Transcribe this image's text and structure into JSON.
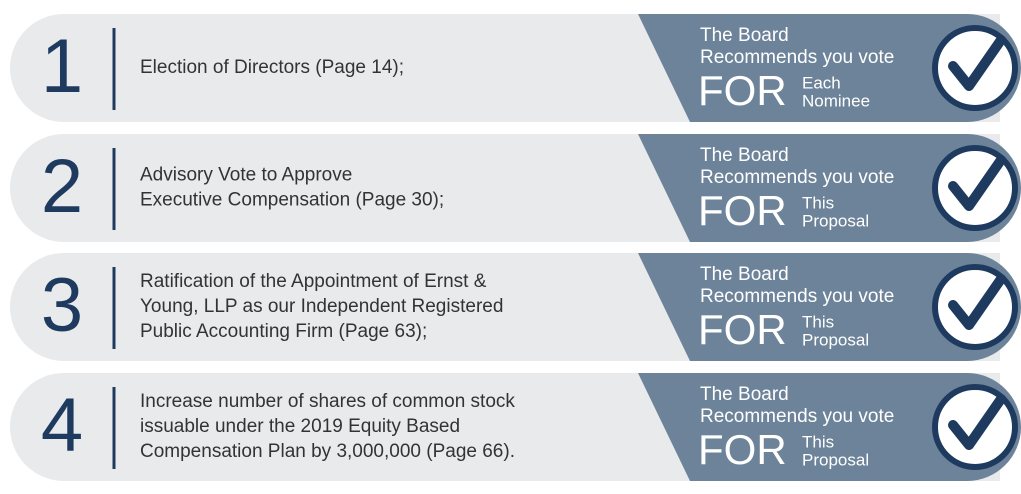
{
  "items": [
    {
      "number": "1",
      "description": [
        "Election of Directors (Page 14);"
      ],
      "recommendation": {
        "line1": "The Board",
        "line2": "Recommends you vote",
        "vote": "FOR",
        "detail": [
          "Each",
          "Nominee"
        ]
      }
    },
    {
      "number": "2",
      "description": [
        "Advisory Vote to Approve",
        "Executive Compensation (Page 30);"
      ],
      "recommendation": {
        "line1": "The Board",
        "line2": "Recommends you vote",
        "vote": "FOR",
        "detail": [
          "This",
          "Proposal"
        ]
      }
    },
    {
      "number": "3",
      "description": [
        "Ratification of the Appointment of Ernst &",
        "Young, LLP as our Independent Registered",
        "Public Accounting Firm (Page 63);"
      ],
      "recommendation": {
        "line1": "The Board",
        "line2": "Recommends you vote",
        "vote": "FOR",
        "detail": [
          "This",
          "Proposal"
        ]
      }
    },
    {
      "number": "4",
      "description": [
        "Increase number of shares of common stock",
        "issuable under the 2019 Equity Based",
        "Compensation Plan by 3,000,000 (Page 66)."
      ],
      "recommendation": {
        "line1": "The Board",
        "line2": "Recommends you vote",
        "vote": "FOR",
        "detail": [
          "This",
          "Proposal"
        ]
      }
    }
  ]
}
